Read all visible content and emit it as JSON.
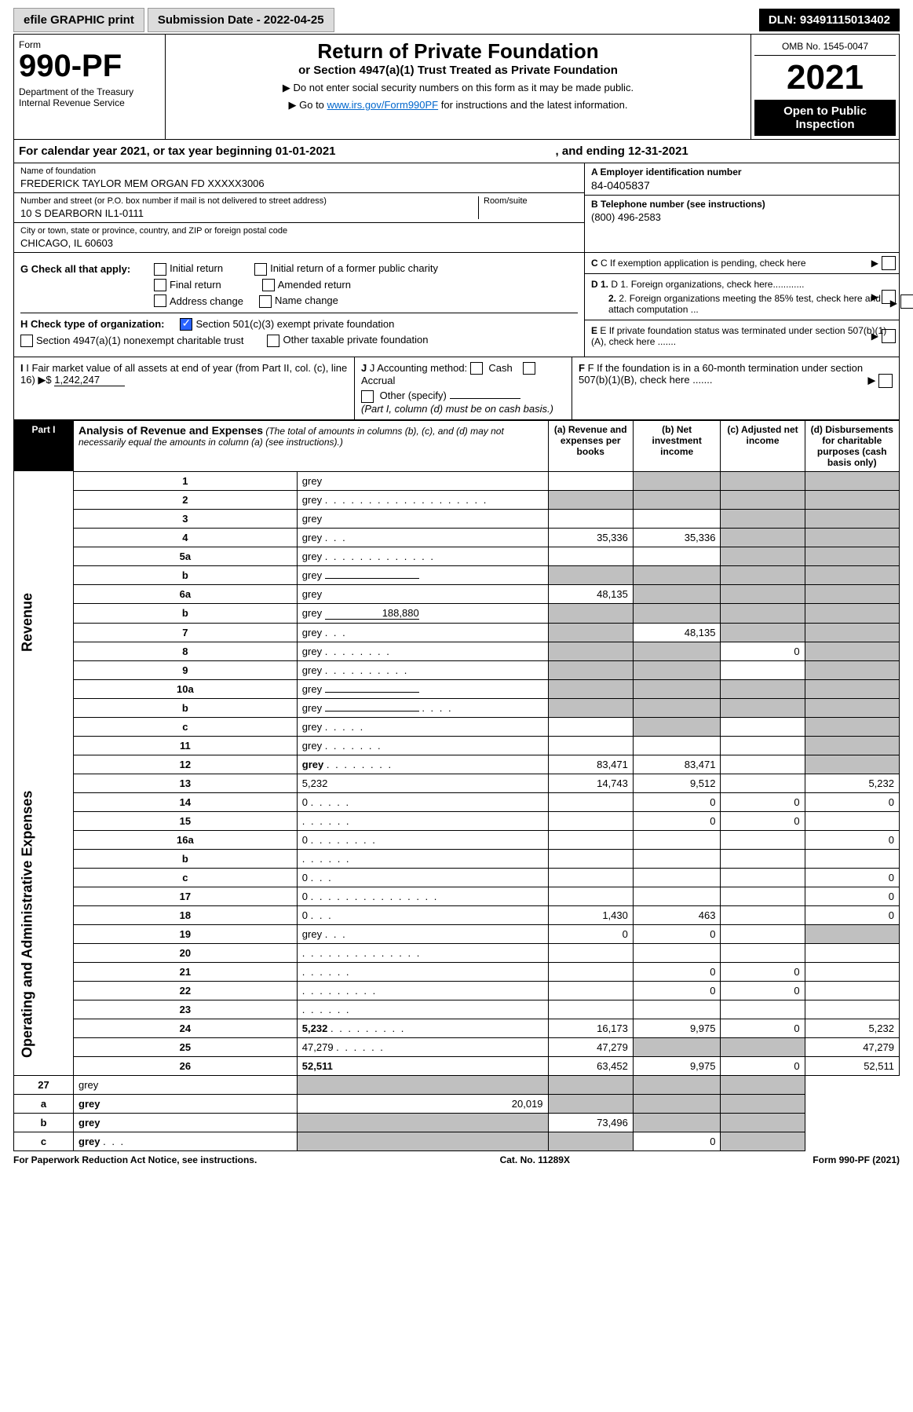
{
  "topbar": {
    "efile": "efile GRAPHIC print",
    "subdate_lbl": "Submission Date - 2022-04-25",
    "dln": "DLN: 93491115013402"
  },
  "hdr": {
    "formlabel": "Form",
    "formnum": "990-PF",
    "dept": "Department of the Treasury\nInternal Revenue Service",
    "title": "Return of Private Foundation",
    "sub": "or Section 4947(a)(1) Trust Treated as Private Foundation",
    "note1": "▶ Do not enter social security numbers on this form as it may be made public.",
    "note2": "▶ Go to ",
    "link": "www.irs.gov/Form990PF",
    "note3": " for instructions and the latest information.",
    "omb": "OMB No. 1545-0047",
    "year": "2021",
    "open": "Open to Public Inspection"
  },
  "calrow": {
    "a": "For calendar year 2021, or tax year beginning 01-01-2021",
    "b": ", and ending 12-31-2021"
  },
  "info": {
    "name_lbl": "Name of foundation",
    "name": "FREDERICK TAYLOR MEM ORGAN FD XXXXX3006",
    "addr_lbl": "Number and street (or P.O. box number if mail is not delivered to street address)",
    "room_lbl": "Room/suite",
    "addr": "10 S DEARBORN IL1-0111",
    "city_lbl": "City or town, state or province, country, and ZIP or foreign postal code",
    "city": "CHICAGO, IL  60603",
    "ein_lbl": "A Employer identification number",
    "ein": "84-0405837",
    "tel_lbl": "B Telephone number (see instructions)",
    "tel": "(800) 496-2583",
    "c": "C If exemption application is pending, check here",
    "d1": "D 1. Foreign organizations, check here............",
    "d2": "2. Foreign organizations meeting the 85% test, check here and attach computation ...",
    "e": "E If private foundation status was terminated under section 507(b)(1)(A), check here .......",
    "f": "F If the foundation is in a 60-month termination under section 507(b)(1)(B), check here ......."
  },
  "g": {
    "lbl": "G Check all that apply:",
    "opts": [
      "Initial return",
      "Initial return of a former public charity",
      "Final return",
      "Amended return",
      "Address change",
      "Name change"
    ]
  },
  "h": {
    "lbl": "H Check type of organization:",
    "opts": [
      "Section 501(c)(3) exempt private foundation",
      "Section 4947(a)(1) nonexempt charitable trust",
      "Other taxable private foundation"
    ],
    "checked": 0
  },
  "i": {
    "lbl": "I Fair market value of all assets at end of year (from Part II, col. (c), line 16) ▶$",
    "val": "1,242,247"
  },
  "j": {
    "lbl": "J Accounting method:",
    "opts": [
      "Cash",
      "Accrual"
    ],
    "other": "Other (specify)",
    "note": "(Part I, column (d) must be on cash basis.)"
  },
  "part1": {
    "label": "Part I",
    "title": "Analysis of Revenue and Expenses",
    "note": "(The total of amounts in columns (b), (c), and (d) may not necessarily equal the amounts in column (a) (see instructions).)",
    "cols": [
      "(a) Revenue and expenses per books",
      "(b) Net investment income",
      "(c) Adjusted net income",
      "(d) Disbursements for charitable purposes (cash basis only)"
    ]
  },
  "sidelabels": {
    "rev": "Revenue",
    "exp": "Operating and Administrative Expenses"
  },
  "rows": [
    {
      "n": "1",
      "d": "grey",
      "a": "",
      "b": "grey",
      "c": "grey"
    },
    {
      "n": "2",
      "d": "grey",
      "dn": ". . . . . . . . . . . . . . . . . . .",
      "a": "grey",
      "b": "grey",
      "c": "grey"
    },
    {
      "n": "3",
      "d": "grey",
      "a": "",
      "b": "",
      "c": "grey"
    },
    {
      "n": "4",
      "d": "grey",
      "dn": ". . .",
      "a": "35,336",
      "b": "35,336",
      "c": "grey"
    },
    {
      "n": "5a",
      "d": "grey",
      "dn": ". . . . . . . . . . . . .",
      "a": "",
      "b": "",
      "c": "grey"
    },
    {
      "n": "b",
      "d": "grey",
      "inline": true,
      "a": "grey",
      "b": "grey",
      "c": "grey"
    },
    {
      "n": "6a",
      "d": "grey",
      "a": "48,135",
      "b": "grey",
      "c": "grey"
    },
    {
      "n": "b",
      "d": "grey",
      "inline": true,
      "iv": "188,880",
      "a": "grey",
      "b": "grey",
      "c": "grey"
    },
    {
      "n": "7",
      "d": "grey",
      "dn": ". . .",
      "a": "grey",
      "b": "48,135",
      "c": "grey"
    },
    {
      "n": "8",
      "d": "grey",
      "dn": ". . . . . . . .",
      "a": "grey",
      "b": "grey",
      "c": "0"
    },
    {
      "n": "9",
      "d": "grey",
      "dn": ". . . . . . . . . .",
      "a": "grey",
      "b": "grey",
      "c": ""
    },
    {
      "n": "10a",
      "d": "grey",
      "inline": true,
      "a": "grey",
      "b": "grey",
      "c": "grey"
    },
    {
      "n": "b",
      "d": "grey",
      "dn": ". . . .",
      "inline": true,
      "a": "grey",
      "b": "grey",
      "c": "grey"
    },
    {
      "n": "c",
      "d": "grey",
      "dn": ". . . . .",
      "a": "",
      "b": "grey",
      "c": ""
    },
    {
      "n": "11",
      "d": "grey",
      "dn": ". . . . . . .",
      "a": "",
      "b": "",
      "c": ""
    },
    {
      "n": "12",
      "d": "grey",
      "dn": ". . . . . . . .",
      "bold": true,
      "a": "83,471",
      "b": "83,471",
      "c": ""
    }
  ],
  "exprows": [
    {
      "n": "13",
      "d": "5,232",
      "a": "14,743",
      "b": "9,512",
      "c": ""
    },
    {
      "n": "14",
      "d": "0",
      "dn": ". . . . .",
      "a": "",
      "b": "0",
      "c": "0"
    },
    {
      "n": "15",
      "d": "",
      "dn": ". . . . . .",
      "a": "",
      "b": "0",
      "c": "0"
    },
    {
      "n": "16a",
      "d": "0",
      "dn": ". . . . . . . .",
      "a": "",
      "b": "",
      "c": ""
    },
    {
      "n": "b",
      "d": "",
      "dn": ". . . . . .",
      "a": "",
      "b": "",
      "c": ""
    },
    {
      "n": "c",
      "d": "0",
      "dn": ". . .",
      "a": "",
      "b": "",
      "c": ""
    },
    {
      "n": "17",
      "d": "0",
      "dn": ". . . . . . . . . . . . . . .",
      "a": "",
      "b": "",
      "c": ""
    },
    {
      "n": "18",
      "d": "0",
      "dn": ". . .",
      "a": "1,430",
      "b": "463",
      "c": ""
    },
    {
      "n": "19",
      "d": "grey",
      "dn": ". . .",
      "a": "0",
      "b": "0",
      "c": ""
    },
    {
      "n": "20",
      "d": "",
      "dn": ". . . . . . . . . . . . . .",
      "a": "",
      "b": "",
      "c": ""
    },
    {
      "n": "21",
      "d": "",
      "dn": ". . . . . .",
      "a": "",
      "b": "0",
      "c": "0"
    },
    {
      "n": "22",
      "d": "",
      "dn": ". . . . . . . . .",
      "a": "",
      "b": "0",
      "c": "0"
    },
    {
      "n": "23",
      "d": "",
      "dn": ". . . . . .",
      "a": "",
      "b": "",
      "c": ""
    },
    {
      "n": "24",
      "d": "5,232",
      "dn": ". . . . . . . . .",
      "bold": true,
      "a": "16,173",
      "b": "9,975",
      "c": "0"
    },
    {
      "n": "25",
      "d": "47,279",
      "dn": ". . . . . .",
      "a": "47,279",
      "b": "grey",
      "c": "grey"
    },
    {
      "n": "26",
      "d": "52,511",
      "bold": true,
      "a": "63,452",
      "b": "9,975",
      "c": "0"
    }
  ],
  "sumrows": [
    {
      "n": "27",
      "d": "grey",
      "a": "grey",
      "b": "grey",
      "c": "grey"
    },
    {
      "n": "a",
      "d": "grey",
      "bold": true,
      "a": "20,019",
      "b": "grey",
      "c": "grey"
    },
    {
      "n": "b",
      "d": "grey",
      "bold": true,
      "a": "grey",
      "b": "73,496",
      "c": "grey"
    },
    {
      "n": "c",
      "d": "grey",
      "dn": ". . .",
      "bold": true,
      "a": "grey",
      "b": "grey",
      "c": "0"
    }
  ],
  "footer": {
    "l": "For Paperwork Reduction Act Notice, see instructions.",
    "m": "Cat. No. 11289X",
    "r": "Form 990-PF (2021)"
  }
}
